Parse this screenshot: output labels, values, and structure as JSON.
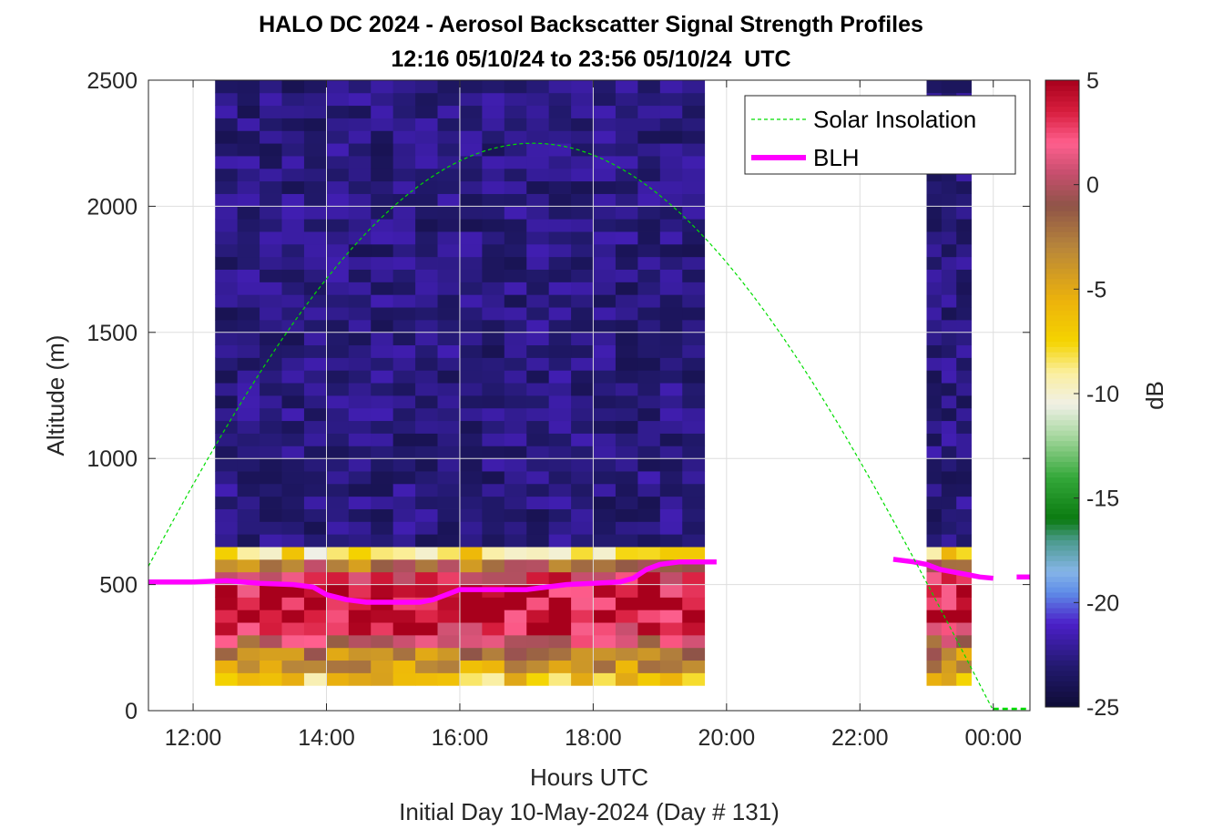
{
  "chart_data": {
    "type": "heatmap",
    "title": "HALO DC 2024 - Aerosol Backscatter Signal Strength Profiles",
    "subtitle": "12:16 05/10/24 to 23:56 05/10/24  UTC",
    "xlabel": "Hours UTC",
    "ylabel": "Altitude (m)",
    "footer": "Initial Day 10-May-2024 (Day # 131)",
    "xlim": [
      11.33,
      24.55
    ],
    "ylim": [
      0,
      2500
    ],
    "xticks": [
      {
        "value": 12,
        "label": "12:00"
      },
      {
        "value": 14,
        "label": "14:00"
      },
      {
        "value": 16,
        "label": "16:00"
      },
      {
        "value": 18,
        "label": "18:00"
      },
      {
        "value": 20,
        "label": "20:00"
      },
      {
        "value": 22,
        "label": "22:00"
      },
      {
        "value": 24,
        "label": "00:00"
      }
    ],
    "yticks": [
      {
        "value": 0,
        "label": "0"
      },
      {
        "value": 500,
        "label": "500"
      },
      {
        "value": 1000,
        "label": "1000"
      },
      {
        "value": 1500,
        "label": "1500"
      },
      {
        "value": 2000,
        "label": "2000"
      },
      {
        "value": 2500,
        "label": "2500"
      }
    ],
    "colorbar": {
      "label": "dB",
      "range": [
        -25,
        5
      ],
      "ticks": [
        {
          "value": 5,
          "label": "5"
        },
        {
          "value": 0,
          "label": "0"
        },
        {
          "value": -5,
          "label": "-5"
        },
        {
          "value": -10,
          "label": "-10"
        },
        {
          "value": -15,
          "label": "-15"
        },
        {
          "value": -20,
          "label": "-20"
        },
        {
          "value": -25,
          "label": "-25"
        }
      ]
    },
    "grid": true,
    "legend": {
      "placement": "top-right",
      "entries": [
        {
          "name": "Solar Insolation",
          "style": "dashed",
          "color": "#00dd00"
        },
        {
          "name": "BLH",
          "style": "solid",
          "color": "#ff00ff"
        }
      ]
    },
    "heatmap": {
      "altitude_bin_m": 50,
      "lowest_bin_m": 100,
      "segments": [
        {
          "start": 12.33,
          "end": 19.67,
          "columns": 22
        },
        {
          "start": 23.0,
          "end": 23.67,
          "columns": 3
        }
      ],
      "background_db": -24,
      "near_surface_profile_db": [
        {
          "altitude": 100,
          "db": -7
        },
        {
          "altitude": 150,
          "db": -4
        },
        {
          "altitude": 200,
          "db": -3
        },
        {
          "altitude": 250,
          "db": 0
        },
        {
          "altitude": 300,
          "db": 3
        },
        {
          "altitude": 350,
          "db": 4
        },
        {
          "altitude": 400,
          "db": 4
        },
        {
          "altitude": 450,
          "db": 4
        },
        {
          "altitude": 500,
          "db": 2
        },
        {
          "altitude": 550,
          "db": -2
        },
        {
          "altitude": 600,
          "db": -8
        }
      ]
    },
    "series": [
      {
        "name": "BLH",
        "x": [
          11.33,
          12.0,
          12.5,
          13.0,
          13.5,
          13.8,
          14.0,
          14.3,
          14.6,
          15.0,
          15.4,
          15.6,
          15.8,
          16.0,
          16.3,
          16.7,
          17.0,
          17.3,
          17.6,
          18.0,
          18.4,
          18.6,
          18.8,
          19.0,
          19.3,
          19.6,
          19.85
        ],
        "y": [
          510,
          510,
          515,
          505,
          500,
          490,
          460,
          440,
          430,
          430,
          430,
          440,
          460,
          480,
          480,
          480,
          480,
          490,
          500,
          505,
          510,
          525,
          560,
          580,
          590,
          590,
          590
        ]
      },
      {
        "name": "BLH",
        "x": [
          22.5,
          22.8,
          23.0,
          23.2,
          23.4,
          23.6,
          23.8,
          24.0
        ],
        "y": [
          600,
          590,
          580,
          560,
          550,
          540,
          530,
          525
        ]
      },
      {
        "name": "BLH",
        "x": [
          24.35,
          24.55
        ],
        "y": [
          530,
          530
        ]
      },
      {
        "name": "Solar Insolation",
        "peak_hour": 17.1,
        "peak_altitude": 2250,
        "zero_hour": 24.0
      }
    ]
  }
}
